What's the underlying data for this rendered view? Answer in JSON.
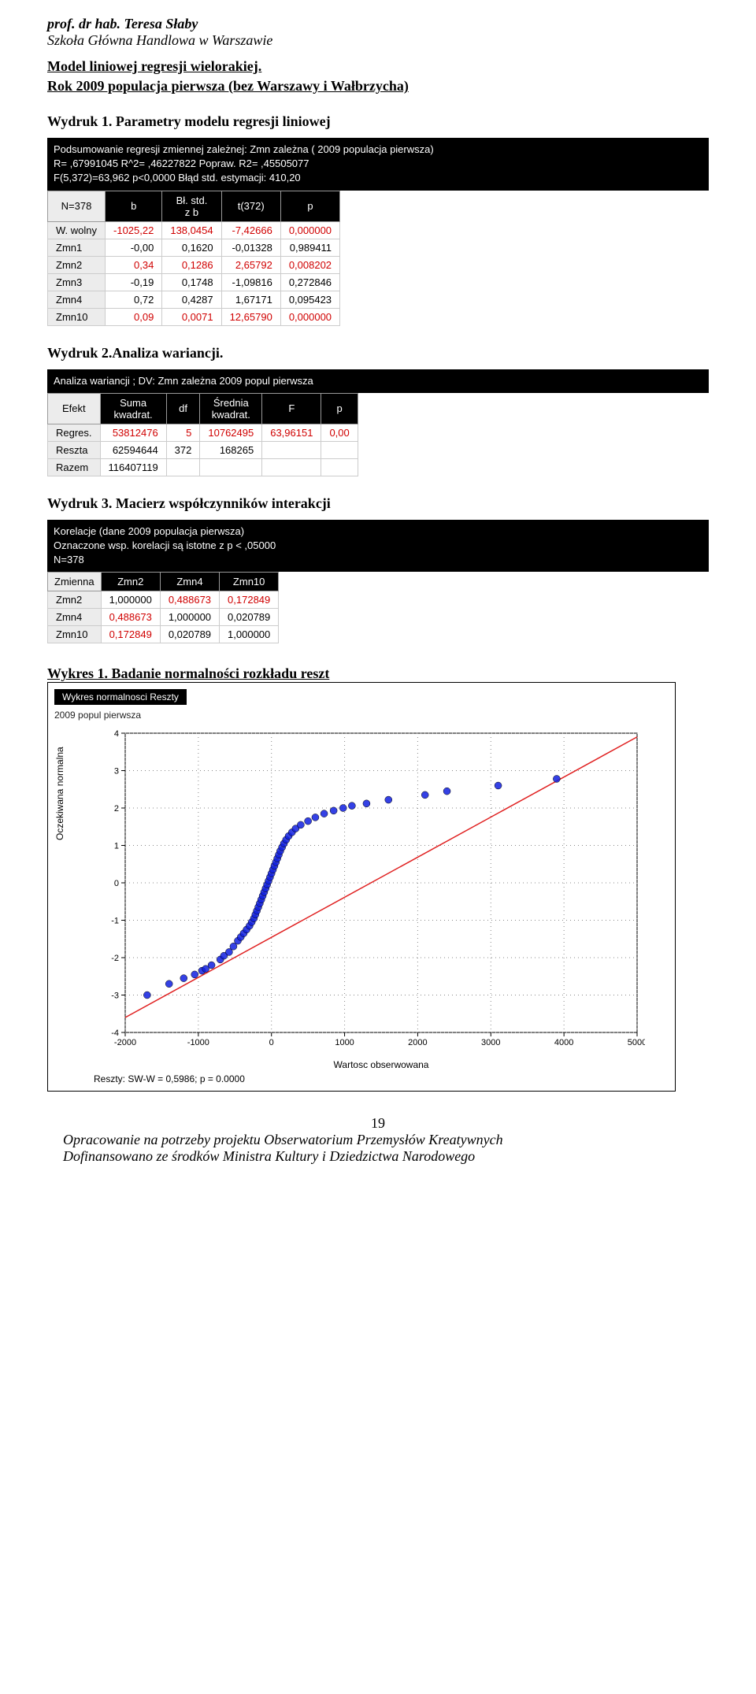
{
  "header": {
    "author": "prof. dr hab. Teresa Słaby",
    "school": "Szkoła Główna Handlowa w Warszawie"
  },
  "title1": "Model liniowej regresji wielorakiej.",
  "title2": "Rok 2009  populacja pierwsza (bez Warszawy i Wałbrzycha)",
  "sec1": "Wydruk 1. Parametry modelu regresji liniowej",
  "sec2": "Wydruk 2.Analiza wariancji.",
  "sec3": "Wydruk 3. Macierz współczynników interakcji",
  "sec4": "Wykres 1. Badanie normalności rozkładu reszt",
  "reg_summary": {
    "l1": "Podsumowanie regresji zmiennej zależnej:   Zmn zależna ( 2009 populacja pierwsza)",
    "l2": "R= ,67991045 R^2= ,46227822 Popraw. R2= ,45505077",
    "l3": "F(5,372)=63,962 p<0,0000 Błąd std. estymacji: 410,20"
  },
  "reg_table": {
    "corner": "N=378",
    "cols": [
      "b",
      "Bł. std.\nz b",
      "t(372)",
      "p"
    ],
    "rows": [
      {
        "name": "W. wolny",
        "vals": [
          "-1025,22",
          "138,0454",
          "-7,42666",
          "0,000000"
        ],
        "sig": true
      },
      {
        "name": "Zmn1",
        "vals": [
          "-0,00",
          "0,1620",
          "-0,01328",
          "0,989411"
        ],
        "sig": false
      },
      {
        "name": "Zmn2",
        "vals": [
          "0,34",
          "0,1286",
          "2,65792",
          "0,008202"
        ],
        "sig": true
      },
      {
        "name": "Zmn3",
        "vals": [
          "-0,19",
          "0,1748",
          "-1,09816",
          "0,272846"
        ],
        "sig": false
      },
      {
        "name": "Zmn4",
        "vals": [
          "0,72",
          "0,4287",
          "1,67171",
          "0,095423"
        ],
        "sig": false
      },
      {
        "name": "Zmn10",
        "vals": [
          "0,09",
          "0,0071",
          "12,65790",
          "0,000000"
        ],
        "sig": true
      }
    ]
  },
  "anova_header": "Analiza wariancji ; DV: Zmn zależna  2009 popul pierwsza",
  "anova_table": {
    "corner": "Efekt",
    "cols": [
      "Suma\nkwadrat.",
      "df",
      "Średnia\nkwadrat.",
      "F",
      "p"
    ],
    "rows": [
      {
        "name": "Regres.",
        "vals": [
          "53812476",
          "5",
          "10762495",
          "63,96151",
          "0,00"
        ],
        "sig": true
      },
      {
        "name": "Reszta",
        "vals": [
          "62594644",
          "372",
          "168265",
          "",
          ""
        ],
        "sig": false
      },
      {
        "name": "Razem",
        "vals": [
          "116407119",
          "",
          "",
          "",
          ""
        ],
        "sig": false
      }
    ]
  },
  "corr_header": {
    "l1": "Korelacje (dane 2009 populacja pierwsza)",
    "l2": "Oznaczone wsp. korelacji są istotne z p < ,05000",
    "l3": "N=378"
  },
  "corr_table": {
    "corner": "Zmienna",
    "cols": [
      "Zmn2",
      "Zmn4",
      "Zmn10"
    ],
    "rows": [
      {
        "name": "Zmn2",
        "vals": [
          "1,000000",
          "0,488673",
          "0,172849"
        ],
        "sig": [
          false,
          true,
          true
        ]
      },
      {
        "name": "Zmn4",
        "vals": [
          "0,488673",
          "1,000000",
          "0,020789"
        ],
        "sig": [
          true,
          false,
          false
        ]
      },
      {
        "name": "Zmn10",
        "vals": [
          "0,172849",
          "0,020789",
          "1,000000"
        ],
        "sig": [
          true,
          false,
          false
        ]
      }
    ]
  },
  "chart": {
    "black_title": "Wykres normalnosci   Reszty",
    "subtitle": "2009 popul pierwsza",
    "ylabel": "Oczekiwana normalna",
    "xlabel": "Wartosc obserwowana",
    "footer": "Reszty: SW-W = 0,5986; p = 0.0000",
    "xlim": [
      -2000,
      5000
    ],
    "ylim": [
      -4,
      4
    ],
    "xticks": [
      -2000,
      -1000,
      0,
      1000,
      2000,
      3000,
      4000,
      5000
    ],
    "yticks": [
      -4,
      -3,
      -2,
      -1,
      0,
      1,
      2,
      3,
      4
    ],
    "line_color": "#e02020",
    "marker_color": "#1020e0",
    "line_x1": -2000,
    "line_y1": -3.6,
    "line_x2": 5000,
    "line_y2": 3.9,
    "points": [
      [
        -1700,
        -3.0
      ],
      [
        -1400,
        -2.7
      ],
      [
        -1200,
        -2.55
      ],
      [
        -1050,
        -2.45
      ],
      [
        -950,
        -2.35
      ],
      [
        -900,
        -2.3
      ],
      [
        -820,
        -2.2
      ],
      [
        -700,
        -2.05
      ],
      [
        -650,
        -1.95
      ],
      [
        -580,
        -1.85
      ],
      [
        -520,
        -1.7
      ],
      [
        -460,
        -1.55
      ],
      [
        -420,
        -1.45
      ],
      [
        -380,
        -1.35
      ],
      [
        -340,
        -1.25
      ],
      [
        -300,
        -1.15
      ],
      [
        -270,
        -1.05
      ],
      [
        -240,
        -0.95
      ],
      [
        -220,
        -0.85
      ],
      [
        -200,
        -0.75
      ],
      [
        -180,
        -0.65
      ],
      [
        -160,
        -0.55
      ],
      [
        -140,
        -0.45
      ],
      [
        -120,
        -0.35
      ],
      [
        -100,
        -0.25
      ],
      [
        -80,
        -0.15
      ],
      [
        -60,
        -0.05
      ],
      [
        -40,
        0.05
      ],
      [
        -20,
        0.15
      ],
      [
        0,
        0.25
      ],
      [
        20,
        0.35
      ],
      [
        40,
        0.45
      ],
      [
        60,
        0.55
      ],
      [
        80,
        0.65
      ],
      [
        100,
        0.75
      ],
      [
        120,
        0.85
      ],
      [
        145,
        0.95
      ],
      [
        170,
        1.05
      ],
      [
        200,
        1.15
      ],
      [
        235,
        1.25
      ],
      [
        280,
        1.35
      ],
      [
        330,
        1.45
      ],
      [
        400,
        1.55
      ],
      [
        500,
        1.65
      ],
      [
        600,
        1.75
      ],
      [
        720,
        1.85
      ],
      [
        850,
        1.93
      ],
      [
        980,
        2.0
      ],
      [
        1100,
        2.06
      ],
      [
        1300,
        2.12
      ],
      [
        1600,
        2.22
      ],
      [
        2100,
        2.35
      ],
      [
        2400,
        2.45
      ],
      [
        3100,
        2.6
      ],
      [
        3900,
        2.78
      ]
    ]
  },
  "page_number": "19",
  "footer1": "Opracowanie na potrzeby projektu Obserwatorium Przemysłów Kreatywnych",
  "footer2": "Dofinansowano ze środków Ministra Kultury i Dziedzictwa Narodowego"
}
